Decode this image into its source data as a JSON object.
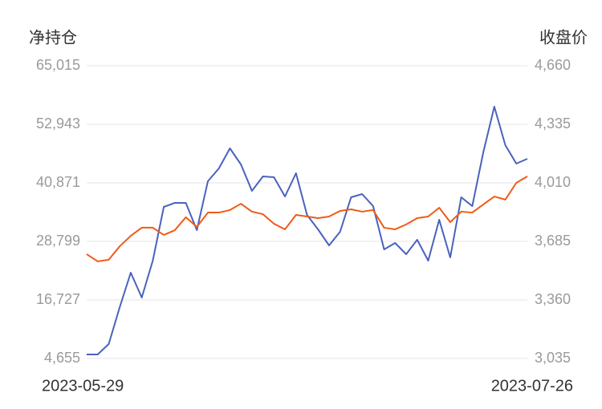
{
  "chart_data": {
    "type": "line",
    "y_label": "净持仓",
    "y2_label": "收盘价",
    "categories": [
      "2023-05-29",
      null,
      null,
      null,
      null,
      null,
      null,
      null,
      null,
      null,
      null,
      null,
      null,
      null,
      null,
      null,
      null,
      null,
      null,
      null,
      null,
      null,
      null,
      null,
      null,
      null,
      null,
      null,
      null,
      null,
      null,
      null,
      null,
      null,
      null,
      null,
      null,
      null,
      null,
      null,
      "2023-07-26"
    ],
    "series": [
      {
        "color": "#4a62bd",
        "axis": "y",
        "values": [
          5480,
          5480,
          7632,
          15239,
          22350,
          17223,
          24830,
          35910,
          36737,
          36737,
          31114,
          41202,
          43848,
          47982,
          44674,
          39217,
          42194,
          42029,
          38060,
          42855,
          34256,
          31280,
          27972,
          30783,
          37894,
          38556,
          36075,
          27145,
          28468,
          26153,
          29130,
          24830,
          33264,
          25492,
          37894,
          36075,
          47155,
          56581,
          48643,
          44840,
          45832
        ]
      },
      {
        "color": "#f25a16",
        "axis": "y2",
        "values": [
          3614,
          3574,
          3583,
          3658,
          3716,
          3761,
          3761,
          3721,
          3747,
          3819,
          3765,
          3845,
          3845,
          3859,
          3894,
          3850,
          3836,
          3783,
          3752,
          3832,
          3823,
          3814,
          3823,
          3854,
          3863,
          3850,
          3859,
          3761,
          3752,
          3779,
          3814,
          3823,
          3872,
          3792,
          3850,
          3845,
          3890,
          3934,
          3917,
          4010,
          4046
        ]
      }
    ],
    "ylim": [
      4655,
      65015
    ],
    "yticks": [
      {
        "value": 4655,
        "label": "4,655"
      },
      {
        "value": 16727,
        "label": "16,727"
      },
      {
        "value": 28799,
        "label": "28,799"
      },
      {
        "value": 40871,
        "label": "40,871"
      },
      {
        "value": 52943,
        "label": "52,943"
      },
      {
        "value": 65015,
        "label": "65,015"
      }
    ],
    "y2lim": [
      3035,
      4660
    ],
    "y2ticks": [
      {
        "value": 3035,
        "label": "3,035"
      },
      {
        "value": 3360,
        "label": "3,360"
      },
      {
        "value": 3685,
        "label": "3,685"
      },
      {
        "value": 4010,
        "label": "4,010"
      },
      {
        "value": 4335,
        "label": "4,335"
      },
      {
        "value": 4660,
        "label": "4,660"
      }
    ],
    "grid": true
  }
}
